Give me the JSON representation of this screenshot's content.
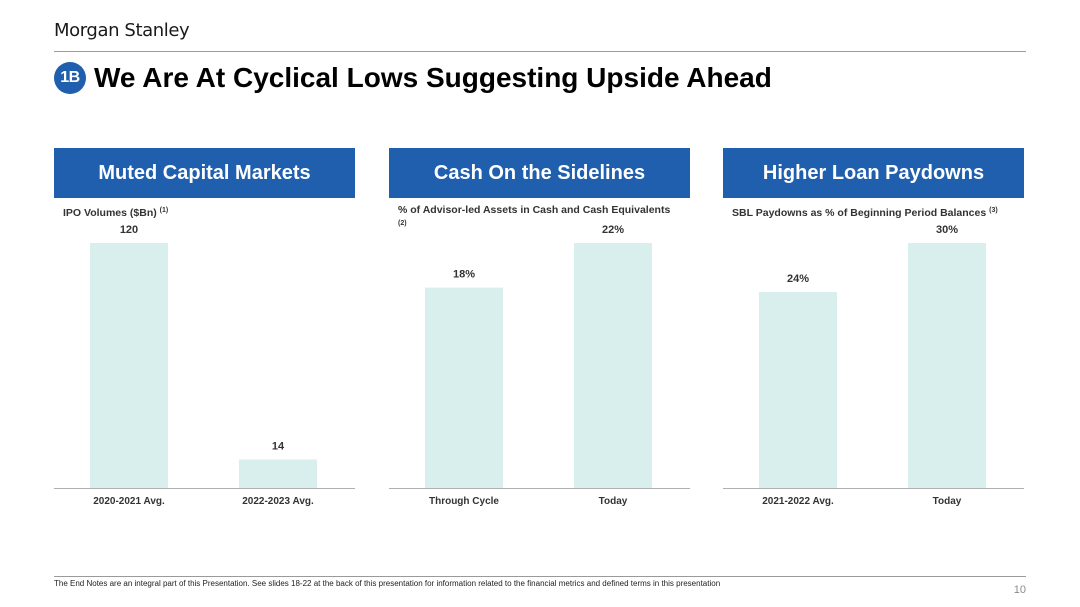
{
  "brand": {
    "logo_text": "Morgan Stanley"
  },
  "slide": {
    "badge": "1B",
    "title": "We Are At Cyclical Lows Suggesting Upside Ahead",
    "footnote": "The End Notes are an integral part of this Presentation. See slides 18-22 at the back of this presentation for information related to the financial metrics and defined terms in this presentation",
    "page_number": "10"
  },
  "colors": {
    "header_blue": "#1f5fae",
    "bar_fill": "#d8efee",
    "axis": "#b0b0b0"
  },
  "panels": [
    {
      "header": "Muted Capital Markets",
      "subtitle": "IPO Volumes ($Bn)",
      "note": "(1)"
    },
    {
      "header": "Cash On the Sidelines",
      "subtitle": "% of Advisor-led Assets in Cash and Cash Equivalents",
      "note": "(2)"
    },
    {
      "header": "Higher Loan Paydowns",
      "subtitle": "SBL Paydowns as % of Beginning Period Balances",
      "note": "(3)"
    }
  ],
  "chart_data": [
    {
      "type": "bar",
      "title": "IPO Volumes ($Bn)",
      "categories": [
        "2020-2021 Avg.",
        "2022-2023 Avg."
      ],
      "values": [
        120,
        14
      ],
      "labels": [
        "120",
        "14"
      ],
      "ylim": [
        0,
        120
      ],
      "grid": false
    },
    {
      "type": "bar",
      "title": "% of Advisor-led Assets in Cash and Cash Equivalents",
      "categories": [
        "Through Cycle",
        "Today"
      ],
      "values": [
        18,
        22
      ],
      "labels": [
        "18%",
        "22%"
      ],
      "ylim": [
        0,
        22
      ],
      "grid": false
    },
    {
      "type": "bar",
      "title": "SBL Paydowns as % of Beginning Period Balances",
      "categories": [
        "2021-2022 Avg.",
        "Today"
      ],
      "values": [
        24,
        30
      ],
      "labels": [
        "24%",
        "30%"
      ],
      "ylim": [
        0,
        30
      ],
      "grid": false
    }
  ]
}
